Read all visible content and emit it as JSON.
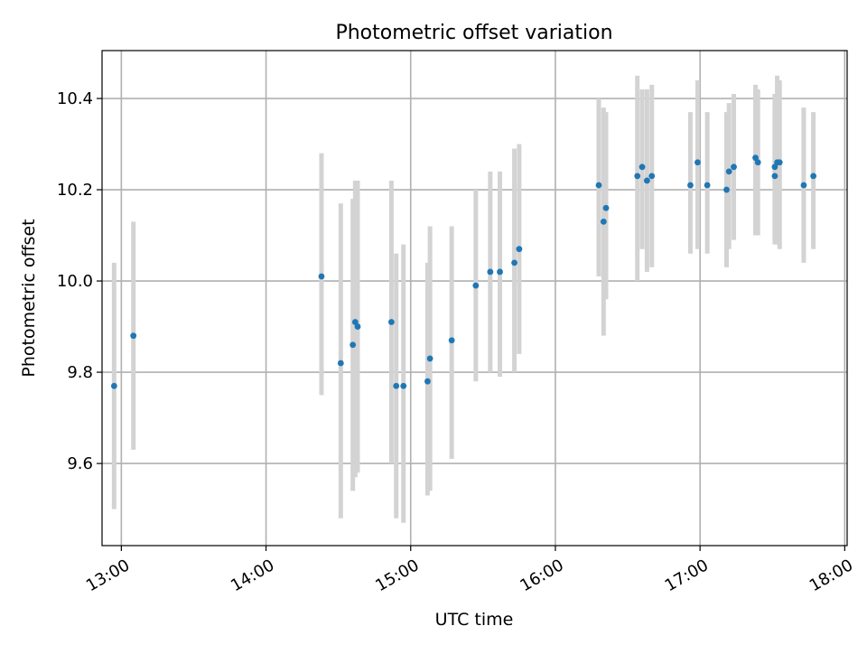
{
  "chart_data": {
    "type": "scatter",
    "title": "Photometric offset variation",
    "xlabel": "UTC time",
    "ylabel": "Photometric offset",
    "x_unit": "UTC time (HH:MM)",
    "xlim": [
      "12:52",
      "18:01"
    ],
    "ylim": [
      9.42,
      10.505
    ],
    "xticks": [
      "13:00",
      "14:00",
      "15:00",
      "16:00",
      "17:00",
      "18:00"
    ],
    "yticks": [
      9.6,
      9.8,
      10.0,
      10.2,
      10.4
    ],
    "grid": true,
    "marker_color": "#1f77b4",
    "errorbar_color": "#d3d3d3",
    "points": [
      {
        "t": "12:57",
        "y": 9.77,
        "lo": 9.5,
        "hi": 10.04
      },
      {
        "t": "13:05",
        "y": 9.88,
        "lo": 9.63,
        "hi": 10.13
      },
      {
        "t": "14:23",
        "y": 10.01,
        "lo": 9.75,
        "hi": 10.28
      },
      {
        "t": "14:31",
        "y": 9.82,
        "lo": 9.48,
        "hi": 10.17
      },
      {
        "t": "14:36",
        "y": 9.86,
        "lo": 9.54,
        "hi": 10.18
      },
      {
        "t": "14:37",
        "y": 9.91,
        "lo": 9.57,
        "hi": 10.22
      },
      {
        "t": "14:38",
        "y": 9.9,
        "lo": 9.58,
        "hi": 10.22
      },
      {
        "t": "14:52",
        "y": 9.91,
        "lo": 9.6,
        "hi": 10.22
      },
      {
        "t": "14:54",
        "y": 9.77,
        "lo": 9.48,
        "hi": 10.06
      },
      {
        "t": "14:57",
        "y": 9.77,
        "lo": 9.47,
        "hi": 10.08
      },
      {
        "t": "15:07",
        "y": 9.78,
        "lo": 9.53,
        "hi": 10.04
      },
      {
        "t": "15:08",
        "y": 9.83,
        "lo": 9.54,
        "hi": 10.12
      },
      {
        "t": "15:17",
        "y": 9.87,
        "lo": 9.61,
        "hi": 10.12
      },
      {
        "t": "15:27",
        "y": 9.99,
        "lo": 9.78,
        "hi": 10.2
      },
      {
        "t": "15:33",
        "y": 10.02,
        "lo": 9.8,
        "hi": 10.24
      },
      {
        "t": "15:37",
        "y": 10.02,
        "lo": 9.79,
        "hi": 10.24
      },
      {
        "t": "15:43",
        "y": 10.04,
        "lo": 9.8,
        "hi": 10.29
      },
      {
        "t": "15:45",
        "y": 10.07,
        "lo": 9.84,
        "hi": 10.3
      },
      {
        "t": "16:18",
        "y": 10.21,
        "lo": 10.01,
        "hi": 10.4
      },
      {
        "t": "16:20",
        "y": 10.13,
        "lo": 9.88,
        "hi": 10.38
      },
      {
        "t": "16:21",
        "y": 10.16,
        "lo": 9.96,
        "hi": 10.37
      },
      {
        "t": "16:34",
        "y": 10.23,
        "lo": 10.0,
        "hi": 10.45
      },
      {
        "t": "16:36",
        "y": 10.25,
        "lo": 10.07,
        "hi": 10.42
      },
      {
        "t": "16:38",
        "y": 10.22,
        "lo": 10.02,
        "hi": 10.42
      },
      {
        "t": "16:40",
        "y": 10.23,
        "lo": 10.03,
        "hi": 10.43
      },
      {
        "t": "16:56",
        "y": 10.21,
        "lo": 10.06,
        "hi": 10.37
      },
      {
        "t": "16:59",
        "y": 10.26,
        "lo": 10.07,
        "hi": 10.44
      },
      {
        "t": "17:03",
        "y": 10.21,
        "lo": 10.06,
        "hi": 10.37
      },
      {
        "t": "17:11",
        "y": 10.2,
        "lo": 10.03,
        "hi": 10.37
      },
      {
        "t": "17:12",
        "y": 10.24,
        "lo": 10.07,
        "hi": 10.39
      },
      {
        "t": "17:14",
        "y": 10.25,
        "lo": 10.09,
        "hi": 10.41
      },
      {
        "t": "17:23",
        "y": 10.27,
        "lo": 10.1,
        "hi": 10.43
      },
      {
        "t": "17:24",
        "y": 10.26,
        "lo": 10.1,
        "hi": 10.42
      },
      {
        "t": "17:31",
        "y": 10.23,
        "lo": 10.08,
        "hi": 10.38
      },
      {
        "t": "17:31",
        "y": 10.25,
        "lo": 10.09,
        "hi": 10.41
      },
      {
        "t": "17:32",
        "y": 10.26,
        "lo": 10.08,
        "hi": 10.45
      },
      {
        "t": "17:33",
        "y": 10.26,
        "lo": 10.07,
        "hi": 10.44
      },
      {
        "t": "17:43",
        "y": 10.21,
        "lo": 10.04,
        "hi": 10.38
      },
      {
        "t": "17:47",
        "y": 10.23,
        "lo": 10.07,
        "hi": 10.37
      }
    ]
  }
}
